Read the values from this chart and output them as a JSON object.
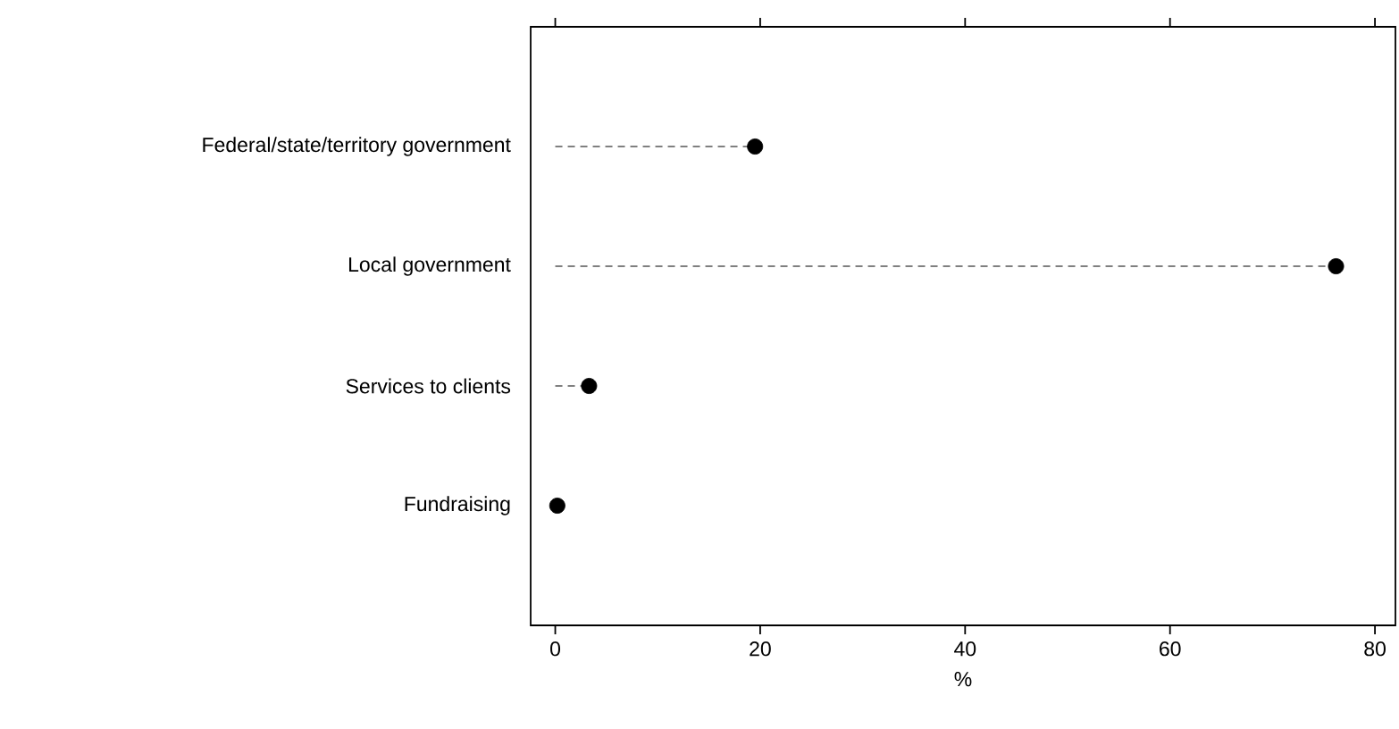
{
  "chart_data": {
    "type": "lollipop",
    "orientation": "horizontal",
    "categories": [
      "Federal/state/territory government",
      "Local government",
      "Services to clients",
      "Fundraising"
    ],
    "values": [
      19.5,
      76.2,
      3.3,
      0.2
    ],
    "color": "#000000",
    "line_style": "dashed",
    "xlabel": "%",
    "xlim": [
      -2.4,
      82
    ],
    "xticks": [
      0,
      20,
      40,
      60,
      80
    ]
  }
}
